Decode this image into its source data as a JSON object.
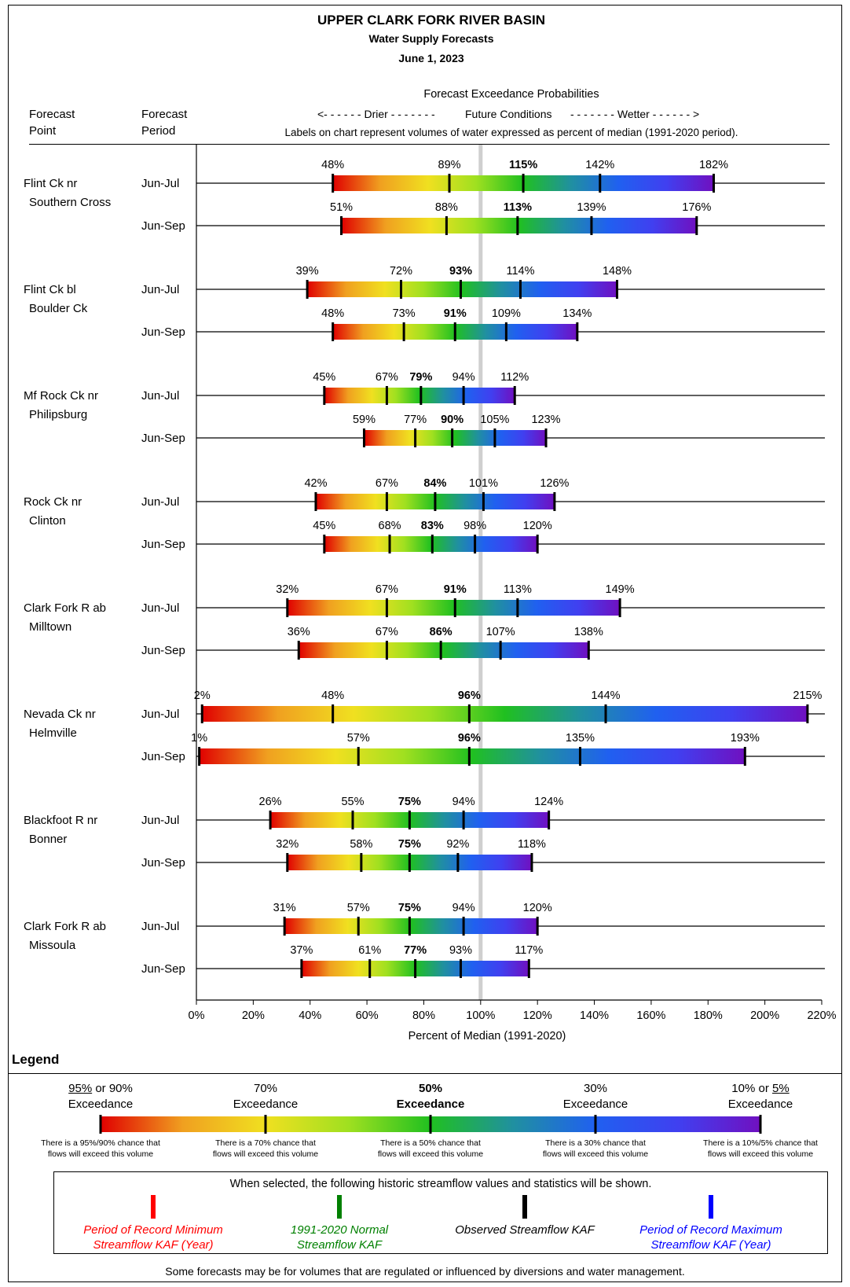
{
  "header": {
    "title": "UPPER CLARK FORK RIVER BASIN",
    "subtitle": "Water Supply Forecasts",
    "date": "June 1, 2023"
  },
  "columns": {
    "point": [
      "Forecast",
      "Point"
    ],
    "period": [
      "Forecast",
      "Period"
    ],
    "exceedance_title": "Forecast Exceedance Probabilities",
    "drier": "<- - - - - - Drier - - - - - - -",
    "future": "Future Conditions",
    "wetter": "- - - - - - - Wetter - - - - - - >",
    "labels_note": "Labels on chart represent volumes of water expressed as percent of median (1991-2020 period)."
  },
  "chart_data": {
    "type": "range-bar",
    "xlabel": "Percent of Median (1991-2020)",
    "xlim": [
      0,
      220
    ],
    "x_ticks": [
      "0%",
      "20%",
      "40%",
      "60%",
      "80%",
      "100%",
      "120%",
      "140%",
      "160%",
      "180%",
      "200%",
      "220%"
    ],
    "median_reference_line": 100,
    "color_scale": [
      "#e00000",
      "#f0a020",
      "#f0e020",
      "#a0e020",
      "#20c020",
      "#2090a0",
      "#2060f0",
      "#4040f0",
      "#7010c0"
    ],
    "series": [
      {
        "point": [
          "Flint Ck nr",
          "Southern Cross"
        ],
        "period": "Jun-Jul",
        "values": [
          48,
          89,
          115,
          142,
          182
        ]
      },
      {
        "point": [
          "Flint Ck nr",
          "Southern Cross"
        ],
        "period": "Jun-Sep",
        "values": [
          51,
          88,
          113,
          139,
          176
        ]
      },
      {
        "point": [
          "Flint Ck bl",
          "Boulder Ck"
        ],
        "period": "Jun-Jul",
        "values": [
          39,
          72,
          93,
          114,
          148
        ]
      },
      {
        "point": [
          "Flint Ck bl",
          "Boulder Ck"
        ],
        "period": "Jun-Sep",
        "values": [
          48,
          73,
          91,
          109,
          134
        ]
      },
      {
        "point": [
          "Mf Rock Ck nr",
          "Philipsburg"
        ],
        "period": "Jun-Jul",
        "values": [
          45,
          67,
          79,
          94,
          112
        ]
      },
      {
        "point": [
          "Mf Rock Ck nr",
          "Philipsburg"
        ],
        "period": "Jun-Sep",
        "values": [
          59,
          77,
          90,
          105,
          123
        ]
      },
      {
        "point": [
          "Rock Ck nr",
          "Clinton"
        ],
        "period": "Jun-Jul",
        "values": [
          42,
          67,
          84,
          101,
          126
        ]
      },
      {
        "point": [
          "Rock Ck nr",
          "Clinton"
        ],
        "period": "Jun-Sep",
        "values": [
          45,
          68,
          83,
          98,
          120
        ]
      },
      {
        "point": [
          "Clark Fork R ab",
          "Milltown"
        ],
        "period": "Jun-Jul",
        "values": [
          32,
          67,
          91,
          113,
          149
        ]
      },
      {
        "point": [
          "Clark Fork R ab",
          "Milltown"
        ],
        "period": "Jun-Sep",
        "values": [
          36,
          67,
          86,
          107,
          138
        ]
      },
      {
        "point": [
          "Nevada Ck nr",
          "Helmville"
        ],
        "period": "Jun-Jul",
        "values": [
          2,
          48,
          96,
          144,
          215
        ]
      },
      {
        "point": [
          "Nevada Ck nr",
          "Helmville"
        ],
        "period": "Jun-Sep",
        "values": [
          1,
          57,
          96,
          135,
          193
        ]
      },
      {
        "point": [
          "Blackfoot R nr",
          "Bonner"
        ],
        "period": "Jun-Jul",
        "values": [
          26,
          55,
          75,
          94,
          124
        ]
      },
      {
        "point": [
          "Blackfoot R nr",
          "Bonner"
        ],
        "period": "Jun-Sep",
        "values": [
          32,
          58,
          75,
          92,
          118
        ]
      },
      {
        "point": [
          "Clark Fork R ab",
          "Missoula"
        ],
        "period": "Jun-Jul",
        "values": [
          31,
          57,
          75,
          94,
          120
        ]
      },
      {
        "point": [
          "Clark Fork R ab",
          "Missoula"
        ],
        "period": "Jun-Sep",
        "values": [
          37,
          61,
          77,
          93,
          117
        ]
      }
    ]
  },
  "legend": {
    "title": "Legend",
    "exceedances": [
      {
        "top_underlined": "95%",
        "top_rest": " or 90%",
        "bottom": "Exceedance",
        "note": [
          "There is a 95%/90% chance that",
          "flows will exceed this volume"
        ]
      },
      {
        "top_underlined": "",
        "top_rest": "70%",
        "bottom": "Exceedance",
        "note": [
          "There is a 70% chance that",
          "flows will exceed this volume"
        ]
      },
      {
        "top_underlined": "",
        "top_rest": "50%",
        "bottom": "Exceedance",
        "note": [
          "There is a 50% chance that",
          "flows will exceed this volume"
        ]
      },
      {
        "top_underlined": "",
        "top_rest": "30%",
        "bottom": "Exceedance",
        "note": [
          "There is a 30% chance that",
          "flows will exceed this volume"
        ]
      },
      {
        "top_prefix": "10% or ",
        "top_underlined": "5%",
        "bottom": "Exceedance",
        "note": [
          "There is a 10%/5% chance that",
          "flows will exceed this volume"
        ]
      }
    ],
    "historic_intro": "When selected, the following historic streamflow values and statistics will be shown.",
    "historic": [
      {
        "color": "#ff0000",
        "lines": [
          "Period of Record Minimum",
          "Streamflow KAF (Year)"
        ]
      },
      {
        "color": "#008000",
        "lines": [
          "1991-2020 Normal",
          "Streamflow KAF"
        ]
      },
      {
        "color": "#000000",
        "lines": [
          "Observed Streamflow KAF",
          ""
        ]
      },
      {
        "color": "#0000ff",
        "lines": [
          "Period of Record Maximum",
          "Streamflow KAF (Year)"
        ]
      }
    ],
    "footer": "Some forecasts may be for volumes that are regulated or influenced by diversions and water management."
  }
}
